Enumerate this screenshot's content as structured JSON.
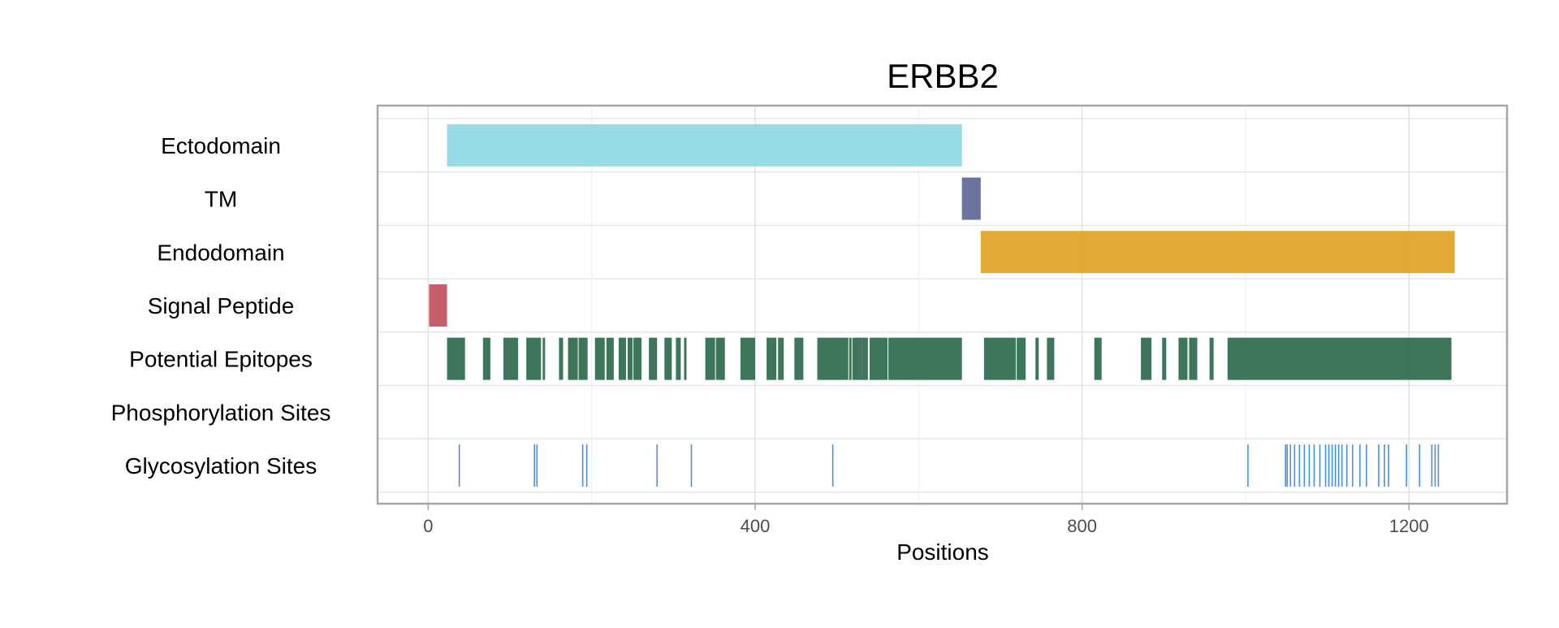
{
  "chart_data": {
    "type": "feature-track",
    "title": "ERBB2",
    "xlabel": "Positions",
    "xlim": [
      -62,
      1320
    ],
    "xticks": [
      0,
      400,
      800,
      1200
    ],
    "grid": true,
    "tracks": [
      {
        "name": "Ectodomain",
        "color": "#8ED8E2",
        "features": [
          [
            23,
            652
          ]
        ]
      },
      {
        "name": "TM",
        "color": "#5E6896",
        "features": [
          [
            653,
            675
          ]
        ]
      },
      {
        "name": "Endodomain",
        "color": "#DFA224",
        "features": [
          [
            676,
            1255
          ]
        ]
      },
      {
        "name": "Signal Peptide",
        "color": "#C2505E",
        "features": [
          [
            1,
            22
          ]
        ]
      },
      {
        "name": "Potential Epitopes",
        "color": "#2E6A4E",
        "features": [
          [
            23,
            44
          ],
          [
            67,
            75
          ],
          [
            92,
            109
          ],
          [
            120,
            137
          ],
          [
            140,
            142
          ],
          [
            160,
            164
          ],
          [
            171,
            182
          ],
          [
            184,
            194
          ],
          [
            204,
            215
          ],
          [
            218,
            226
          ],
          [
            233,
            241
          ],
          [
            244,
            249
          ],
          [
            251,
            260
          ],
          [
            270,
            279
          ],
          [
            289,
            297
          ],
          [
            303,
            308
          ],
          [
            313,
            315
          ],
          [
            339,
            350
          ],
          [
            352,
            362
          ],
          [
            382,
            399
          ],
          [
            414,
            425
          ],
          [
            428,
            434
          ],
          [
            448,
            458
          ],
          [
            476,
            513
          ],
          [
            515,
            517
          ],
          [
            519,
            530
          ],
          [
            531,
            537
          ],
          [
            540,
            561
          ],
          [
            563,
            652
          ],
          [
            680,
            718
          ],
          [
            720,
            730
          ],
          [
            743,
            746
          ],
          [
            757,
            765
          ],
          [
            815,
            823
          ],
          [
            872,
            884
          ],
          [
            898,
            902
          ],
          [
            918,
            928
          ],
          [
            931,
            940
          ],
          [
            956,
            960
          ],
          [
            978,
            1251
          ]
        ]
      },
      {
        "name": "Phosphorylation Sites",
        "color": "#4A90D9",
        "features": []
      },
      {
        "name": "Glycosylation Sites",
        "color": "#4A90D9",
        "sites": [
          38,
          130,
          133,
          189,
          194,
          280,
          322,
          495,
          1003,
          1049,
          1051,
          1055,
          1060,
          1066,
          1072,
          1078,
          1084,
          1091,
          1098,
          1102,
          1106,
          1110,
          1114,
          1118,
          1124,
          1131,
          1140,
          1148,
          1163,
          1170,
          1175,
          1197,
          1213,
          1228,
          1232,
          1236
        ]
      }
    ]
  }
}
